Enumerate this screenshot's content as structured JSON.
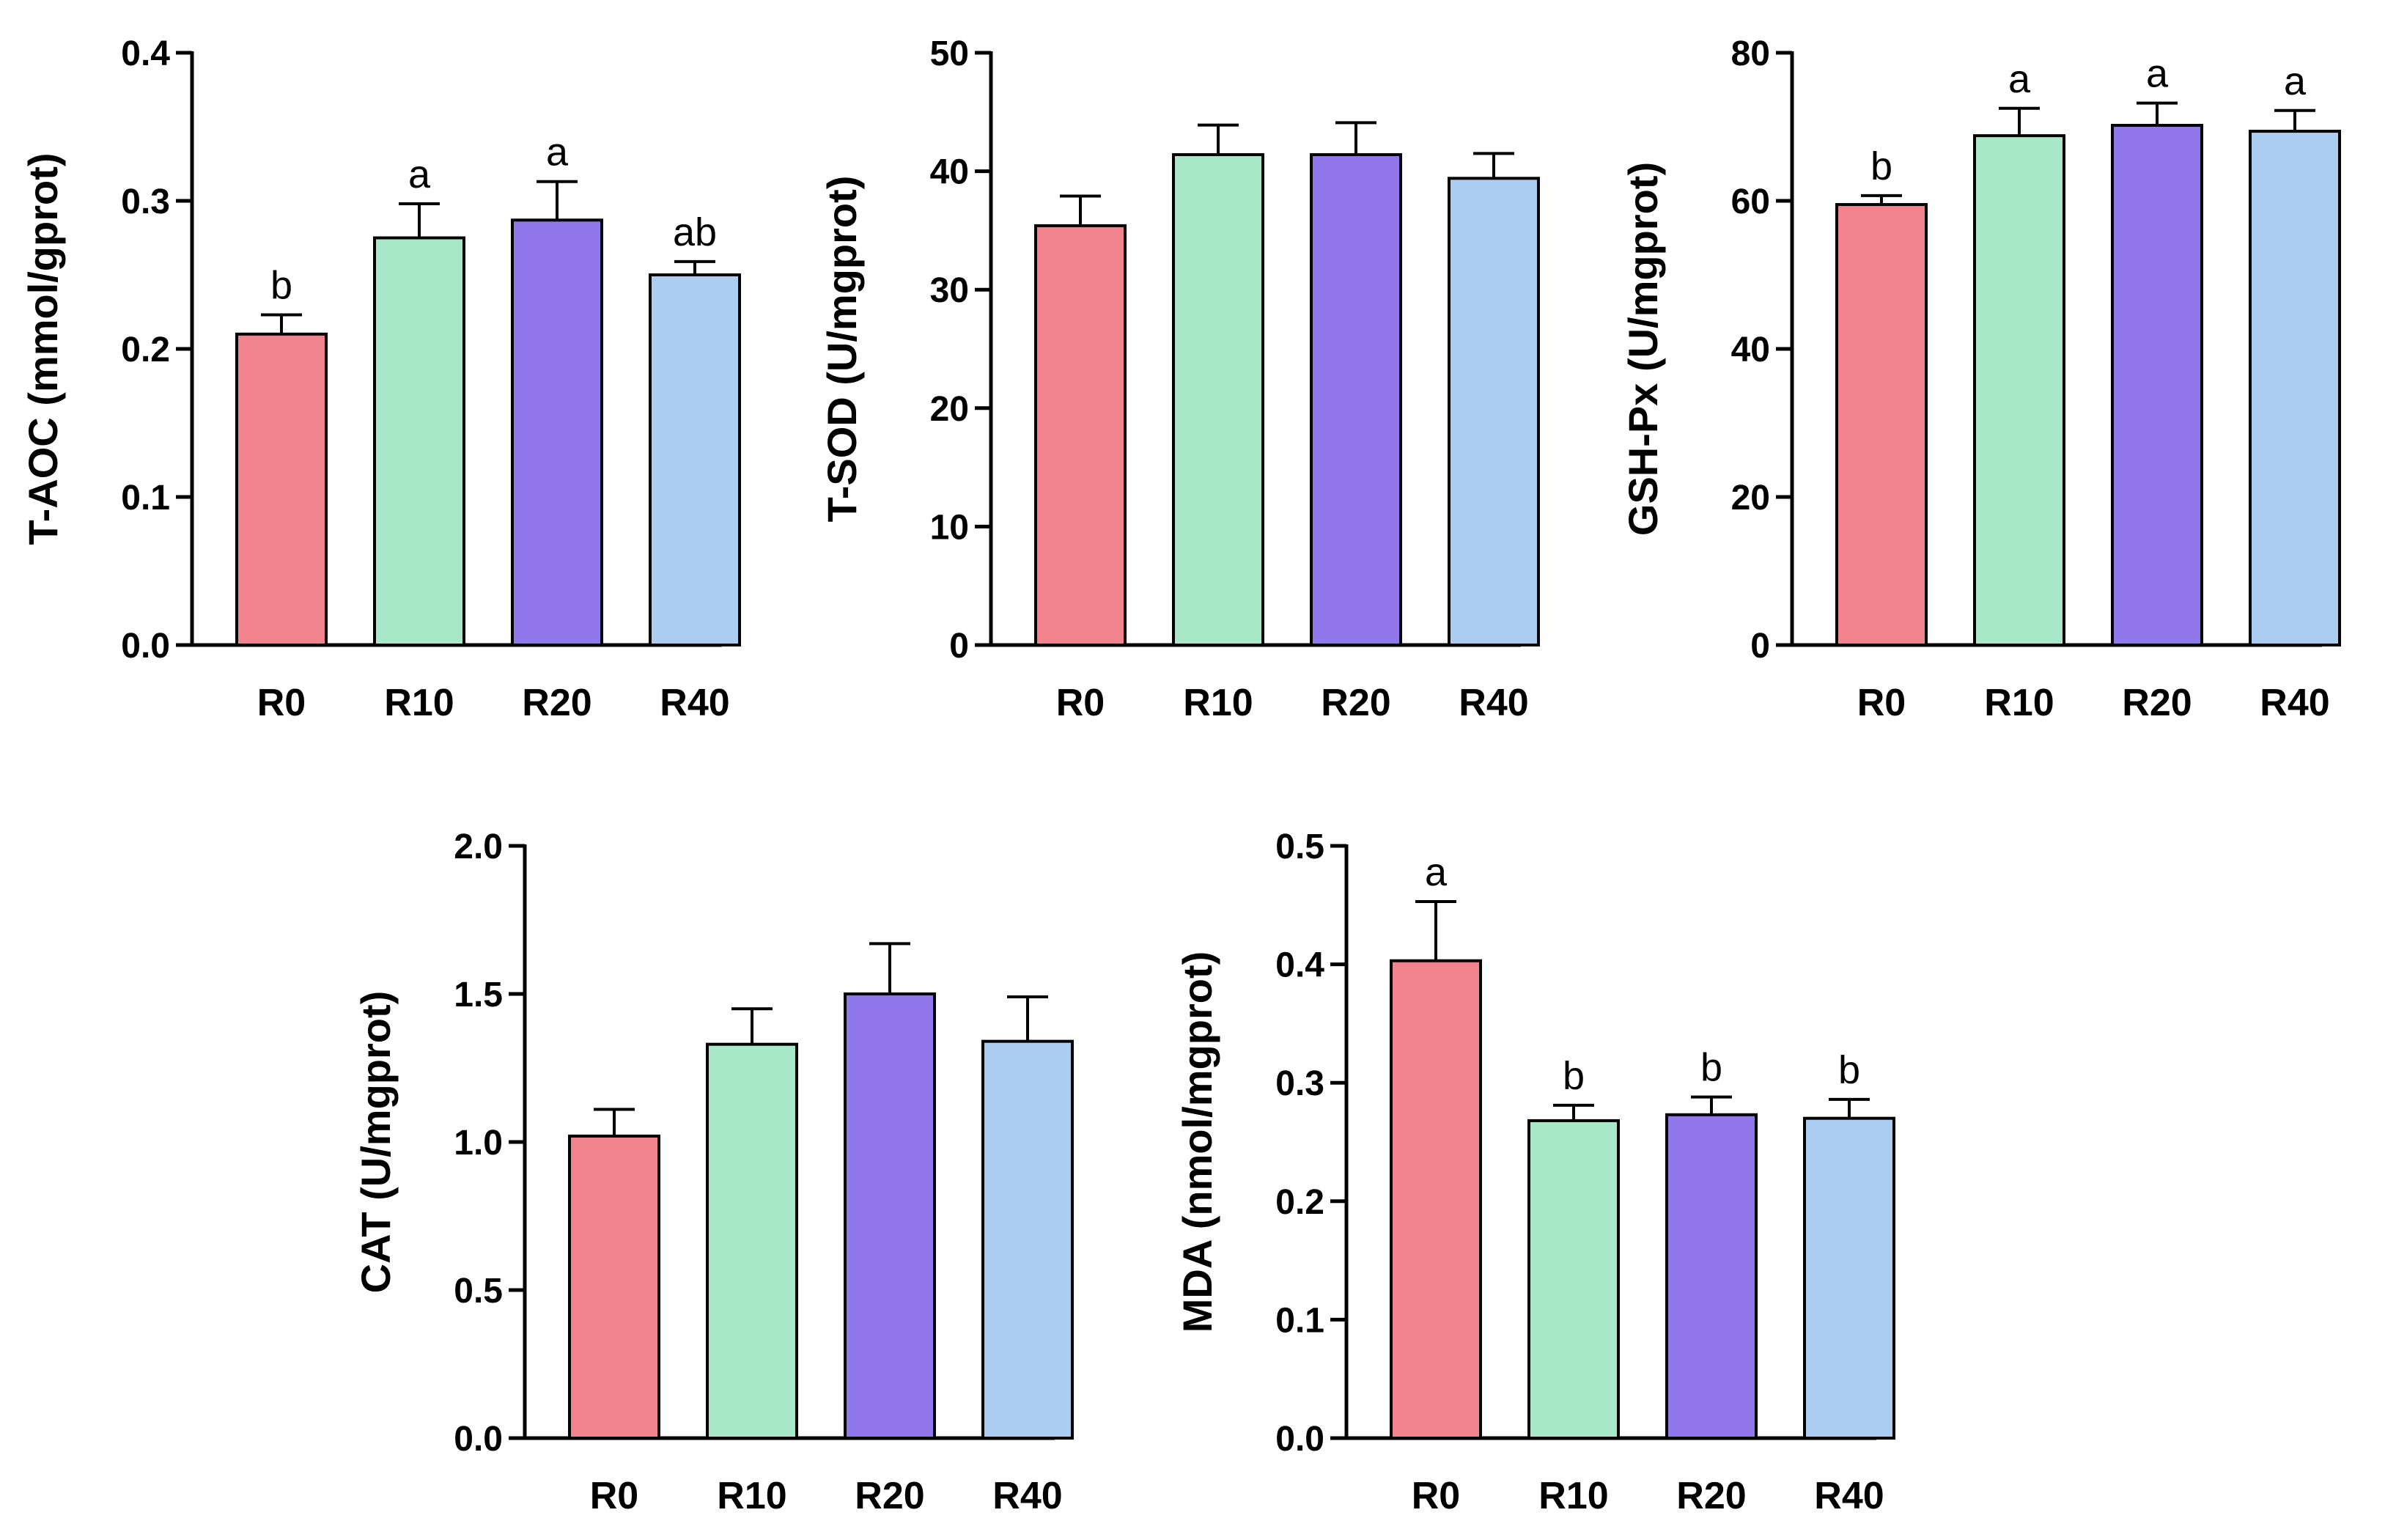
{
  "colors": {
    "R0": "#f1838c",
    "R10": "#a8e8c8",
    "R20": "#9178ea",
    "R40": "#acccf0"
  },
  "chart_data": [
    {
      "type": "bar",
      "categories": [
        "R0",
        "R10",
        "R20",
        "R40"
      ],
      "values": [
        0.21,
        0.275,
        0.287,
        0.25
      ],
      "errors": [
        0.013,
        0.023,
        0.026,
        0.009
      ],
      "labels": [
        "b",
        "a",
        "a",
        "ab"
      ],
      "ylabel": "T-AOC (mmol/gprot)",
      "ylim": [
        0,
        0.4
      ],
      "yticks": [
        "0.0",
        "0.1",
        "0.2",
        "0.3",
        "0.4"
      ]
    },
    {
      "type": "bar",
      "categories": [
        "R0",
        "R10",
        "R20",
        "R40"
      ],
      "values": [
        35.4,
        41.4,
        41.4,
        39.4
      ],
      "errors": [
        2.5,
        2.5,
        2.7,
        2.1
      ],
      "labels": [
        "",
        "",
        "",
        ""
      ],
      "ylabel": "T-SOD (U/mgprot)",
      "ylim": [
        0,
        50
      ],
      "yticks": [
        "0",
        "10",
        "20",
        "30",
        "40",
        "50"
      ]
    },
    {
      "type": "bar",
      "categories": [
        "R0",
        "R10",
        "R20",
        "R40"
      ],
      "values": [
        59.5,
        68.8,
        70.2,
        69.4
      ],
      "errors": [
        1.2,
        3.7,
        3.0,
        2.8
      ],
      "labels": [
        "b",
        "a",
        "a",
        "a"
      ],
      "ylabel": "GSH-Px (U/mgprot)",
      "ylim": [
        0,
        80
      ],
      "yticks": [
        "0",
        "20",
        "40",
        "60",
        "80"
      ]
    },
    {
      "type": "bar",
      "categories": [
        "R0",
        "R10",
        "R20",
        "R40"
      ],
      "values": [
        1.02,
        1.33,
        1.5,
        1.34
      ],
      "errors": [
        0.09,
        0.12,
        0.17,
        0.15
      ],
      "labels": [
        "",
        "",
        "",
        ""
      ],
      "ylabel": "CAT (U/mgprot)",
      "ylim": [
        0,
        2.0
      ],
      "yticks": [
        "0.0",
        "0.5",
        "1.0",
        "1.5",
        "2.0"
      ]
    },
    {
      "type": "bar",
      "categories": [
        "R0",
        "R10",
        "R20",
        "R40"
      ],
      "values": [
        0.403,
        0.268,
        0.273,
        0.27
      ],
      "errors": [
        0.05,
        0.013,
        0.015,
        0.016
      ],
      "labels": [
        "a",
        "b",
        "b",
        "b"
      ],
      "ylabel": "MDA (nmol/mgprot)",
      "ylim": [
        0,
        0.5
      ],
      "yticks": [
        "0.0",
        "0.1",
        "0.2",
        "0.3",
        "0.4",
        "0.5"
      ]
    }
  ]
}
